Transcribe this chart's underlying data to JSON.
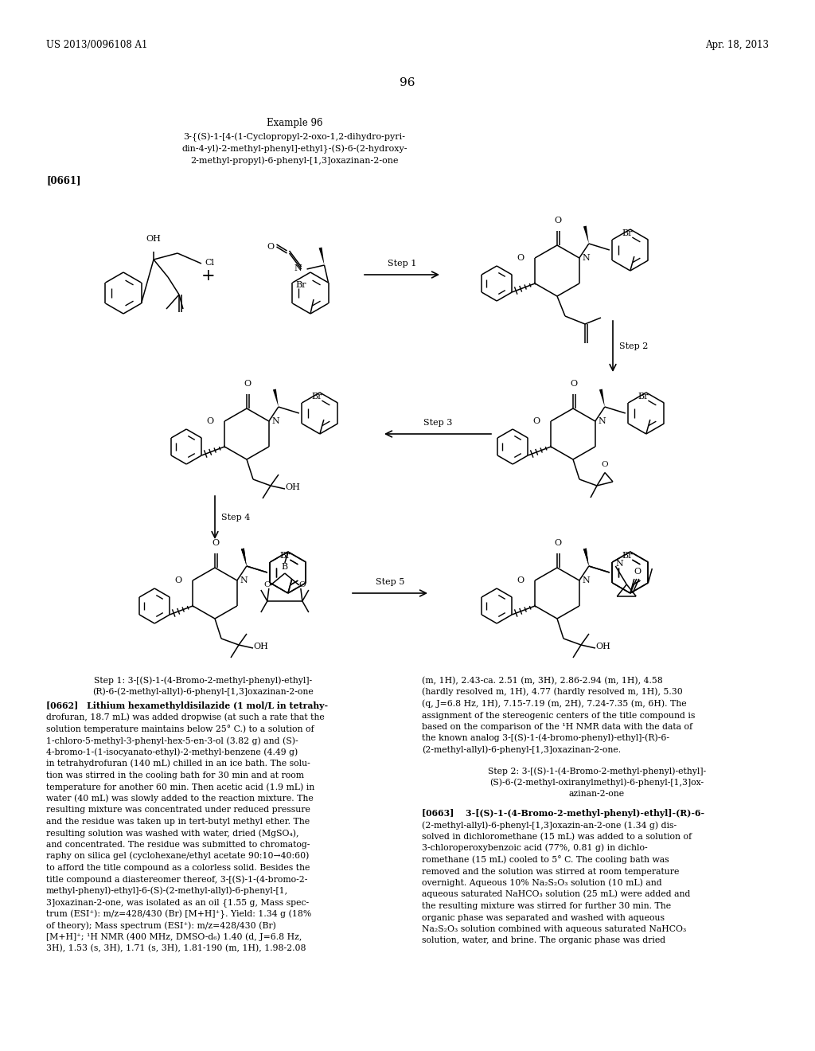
{
  "page_number": "96",
  "patent_number": "US 2013/0096108 A1",
  "patent_date": "Apr. 18, 2013",
  "example_title": "Example 96",
  "cn_l1": "3-{(S)-1-[4-(1-Cyclopropyl-2-oxo-1,2-dihydro-pyri-",
  "cn_l2": "din-4-yl)-2-methyl-phenyl]-ethyl}-(S)-6-(2-hydroxy-",
  "cn_l3": "2-methyl-propyl)-6-phenyl-[1,3]oxazinan-2-one",
  "para0661": "[0661]",
  "step1_lbl": "Step 1",
  "step2_lbl": "Step 2",
  "step3_lbl": "Step 3",
  "step4_lbl": "Step 4",
  "step5_lbl": "Step 5",
  "s1t1": "Step 1: 3-[(S)-1-(4-Bromo-2-methyl-phenyl)-ethyl]-",
  "s1t2": "(R)-6-(2-methyl-allyl)-6-phenyl-[1,3]oxazinan-2-one",
  "s2t1": "Step 2: 3-[(S)-1-(4-Bromo-2-methyl-phenyl)-ethyl]-",
  "s2t2": "(S)-6-(2-methyl-oxiranylmethyl)-6-phenyl-[1,3]ox-",
  "s2t3": "azinan-2-one",
  "p0662_l1": "[0662] Lithium hexamethyldisilazide (1 mol/L in tetrahy-",
  "p0662_l2": "drofuran, 18.7 mL) was added dropwise (at such a rate that the",
  "p0662_l3": "solution temperature maintains below 25° C.) to a solution of",
  "p0662_l4": "1-chloro-5-methyl-3-phenyl-hex-5-en-3-ol (3.82 g) and (S)-",
  "p0662_l5": "4-bromo-1-(1-isocyanato-ethyl)-2-methyl-benzene (4.49 g)",
  "p0662_l6": "in tetrahydrofuran (140 mL) chilled in an ice bath. The solu-",
  "p0662_l7": "tion was stirred in the cooling bath for 30 min and at room",
  "p0662_l8": "temperature for another 60 min. Then acetic acid (1.9 mL) in",
  "p0662_l9": "water (40 mL) was slowly added to the reaction mixture. The",
  "p0662_l10": "resulting mixture was concentrated under reduced pressure",
  "p0662_l11": "and the residue was taken up in tert-butyl methyl ether. The",
  "p0662_l12": "resulting solution was washed with water, dried (MgSO₄),",
  "p0662_l13": "and concentrated. The residue was submitted to chromatog-",
  "p0662_l14": "raphy on silica gel (cyclohexane/ethyl acetate 90:10→40:60)",
  "p0662_l15": "to afford the title compound as a colorless solid. Besides the",
  "p0662_l16": "title compound a diastereomer thereof, 3-[(S)-1-(4-bromo-2-",
  "p0662_l17": "methyl-phenyl)-ethyl]-6-(S)-(2-methyl-allyl)-6-phenyl-[1,",
  "p0662_l18": "3]oxazinan-2-one, was isolated as an oil {1.55 g, Mass spec-",
  "p0662_l19": "trum (ESI⁺): m/z=428/430 (Br) [M+H]⁺}. Yield: 1.34 g (18%",
  "p0662_l20": "of theory); Mass spectrum (ESI⁺): m/z=428/430 (Br)",
  "p0662_l21": "[M+H]⁺; ¹H NMR (400 MHz, DMSO-d₆) 1.40 (d, J=6.8 Hz,",
  "p0662_l22": "3H), 1.53 (s, 3H), 1.71 (s, 3H), 1.81-190 (m, 1H), 1.98-2.08",
  "rc_l1": "(m, 1H), 2.43-ca. 2.51 (m, 3H), 2.86-2.94 (m, 1H), 4.58",
  "rc_l2": "(hardly resolved m, 1H), 4.77 (hardly resolved m, 1H), 5.30",
  "rc_l3": "(q, J=6.8 Hz, 1H), 7.15-7.19 (m, 2H), 7.24-7.35 (m, 6H). The",
  "rc_l4": "assignment of the stereogenic centers of the title compound is",
  "rc_l5": "based on the comparison of the ¹H NMR data with the data of",
  "rc_l6": "the known analog 3-[(S)-1-(4-bromo-phenyl)-ethyl]-(R)-6-",
  "rc_l7": "(2-methyl-allyl)-6-phenyl-[1,3]oxazinan-2-one.",
  "p0663_l1": "[0663]  3-[(S)-1-(4-Bromo-2-methyl-phenyl)-ethyl]-(R)-6-",
  "p0663_l2": "(2-methyl-allyl)-6-phenyl-[1,3]oxazin-an-2-one (1.34 g) dis-",
  "p0663_l3": "solved in dichloromethane (15 mL) was added to a solution of",
  "p0663_l4": "3-chloroperoxybenzoic acid (77%, 0.81 g) in dichlo-",
  "p0663_l5": "romethane (15 mL) cooled to 5° C. The cooling bath was",
  "p0663_l6": "removed and the solution was stirred at room temperature",
  "p0663_l7": "overnight. Aqueous 10% Na₂S₂O₃ solution (10 mL) and",
  "p0663_l8": "aqueous saturated NaHCO₃ solution (25 mL) were added and",
  "p0663_l9": "the resulting mixture was stirred for further 30 min. The",
  "p0663_l10": "organic phase was separated and washed with aqueous",
  "p0663_l11": "Na₂S₂O₃ solution combined with aqueous saturated NaHCO₃",
  "p0663_l12": "solution, water, and brine. The organic phase was dried",
  "bg": "#ffffff",
  "fg": "#000000"
}
